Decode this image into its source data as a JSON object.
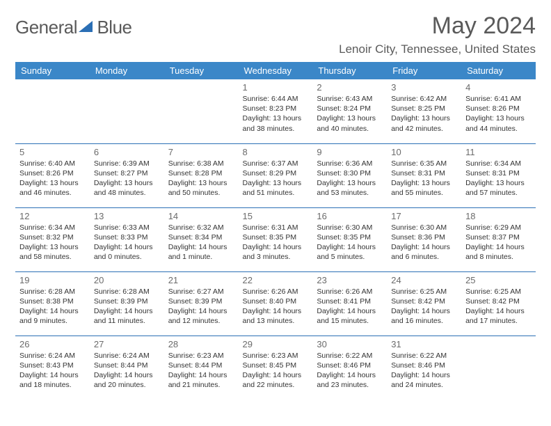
{
  "logo": {
    "text_gray": "General",
    "text_blue": "Blue"
  },
  "title": "May 2024",
  "location": "Lenoir City, Tennessee, United States",
  "colors": {
    "header_bg": "#3b87c8",
    "header_text": "#ffffff",
    "border": "#2b6fb5",
    "body_text": "#333333",
    "muted_text": "#6b6b6b",
    "title_text": "#5a5a5a"
  },
  "day_headers": [
    "Sunday",
    "Monday",
    "Tuesday",
    "Wednesday",
    "Thursday",
    "Friday",
    "Saturday"
  ],
  "weeks": [
    [
      null,
      null,
      null,
      {
        "n": "1",
        "sr": "6:44 AM",
        "ss": "8:23 PM",
        "dl": "13 hours and 38 minutes."
      },
      {
        "n": "2",
        "sr": "6:43 AM",
        "ss": "8:24 PM",
        "dl": "13 hours and 40 minutes."
      },
      {
        "n": "3",
        "sr": "6:42 AM",
        "ss": "8:25 PM",
        "dl": "13 hours and 42 minutes."
      },
      {
        "n": "4",
        "sr": "6:41 AM",
        "ss": "8:26 PM",
        "dl": "13 hours and 44 minutes."
      }
    ],
    [
      {
        "n": "5",
        "sr": "6:40 AM",
        "ss": "8:26 PM",
        "dl": "13 hours and 46 minutes."
      },
      {
        "n": "6",
        "sr": "6:39 AM",
        "ss": "8:27 PM",
        "dl": "13 hours and 48 minutes."
      },
      {
        "n": "7",
        "sr": "6:38 AM",
        "ss": "8:28 PM",
        "dl": "13 hours and 50 minutes."
      },
      {
        "n": "8",
        "sr": "6:37 AM",
        "ss": "8:29 PM",
        "dl": "13 hours and 51 minutes."
      },
      {
        "n": "9",
        "sr": "6:36 AM",
        "ss": "8:30 PM",
        "dl": "13 hours and 53 minutes."
      },
      {
        "n": "10",
        "sr": "6:35 AM",
        "ss": "8:31 PM",
        "dl": "13 hours and 55 minutes."
      },
      {
        "n": "11",
        "sr": "6:34 AM",
        "ss": "8:31 PM",
        "dl": "13 hours and 57 minutes."
      }
    ],
    [
      {
        "n": "12",
        "sr": "6:34 AM",
        "ss": "8:32 PM",
        "dl": "13 hours and 58 minutes."
      },
      {
        "n": "13",
        "sr": "6:33 AM",
        "ss": "8:33 PM",
        "dl": "14 hours and 0 minutes."
      },
      {
        "n": "14",
        "sr": "6:32 AM",
        "ss": "8:34 PM",
        "dl": "14 hours and 1 minute."
      },
      {
        "n": "15",
        "sr": "6:31 AM",
        "ss": "8:35 PM",
        "dl": "14 hours and 3 minutes."
      },
      {
        "n": "16",
        "sr": "6:30 AM",
        "ss": "8:35 PM",
        "dl": "14 hours and 5 minutes."
      },
      {
        "n": "17",
        "sr": "6:30 AM",
        "ss": "8:36 PM",
        "dl": "14 hours and 6 minutes."
      },
      {
        "n": "18",
        "sr": "6:29 AM",
        "ss": "8:37 PM",
        "dl": "14 hours and 8 minutes."
      }
    ],
    [
      {
        "n": "19",
        "sr": "6:28 AM",
        "ss": "8:38 PM",
        "dl": "14 hours and 9 minutes."
      },
      {
        "n": "20",
        "sr": "6:28 AM",
        "ss": "8:39 PM",
        "dl": "14 hours and 11 minutes."
      },
      {
        "n": "21",
        "sr": "6:27 AM",
        "ss": "8:39 PM",
        "dl": "14 hours and 12 minutes."
      },
      {
        "n": "22",
        "sr": "6:26 AM",
        "ss": "8:40 PM",
        "dl": "14 hours and 13 minutes."
      },
      {
        "n": "23",
        "sr": "6:26 AM",
        "ss": "8:41 PM",
        "dl": "14 hours and 15 minutes."
      },
      {
        "n": "24",
        "sr": "6:25 AM",
        "ss": "8:42 PM",
        "dl": "14 hours and 16 minutes."
      },
      {
        "n": "25",
        "sr": "6:25 AM",
        "ss": "8:42 PM",
        "dl": "14 hours and 17 minutes."
      }
    ],
    [
      {
        "n": "26",
        "sr": "6:24 AM",
        "ss": "8:43 PM",
        "dl": "14 hours and 18 minutes."
      },
      {
        "n": "27",
        "sr": "6:24 AM",
        "ss": "8:44 PM",
        "dl": "14 hours and 20 minutes."
      },
      {
        "n": "28",
        "sr": "6:23 AM",
        "ss": "8:44 PM",
        "dl": "14 hours and 21 minutes."
      },
      {
        "n": "29",
        "sr": "6:23 AM",
        "ss": "8:45 PM",
        "dl": "14 hours and 22 minutes."
      },
      {
        "n": "30",
        "sr": "6:22 AM",
        "ss": "8:46 PM",
        "dl": "14 hours and 23 minutes."
      },
      {
        "n": "31",
        "sr": "6:22 AM",
        "ss": "8:46 PM",
        "dl": "14 hours and 24 minutes."
      },
      null
    ]
  ],
  "labels": {
    "sunrise": "Sunrise:",
    "sunset": "Sunset:",
    "daylight": "Daylight:"
  }
}
